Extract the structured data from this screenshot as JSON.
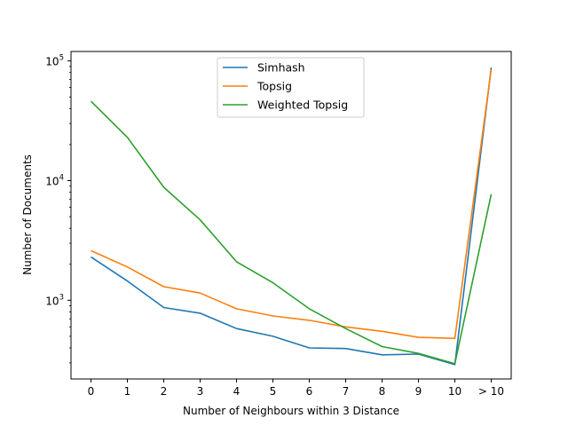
{
  "chart_data": {
    "type": "line",
    "title": "",
    "xlabel": "Number of Neighbours within 3 Distance",
    "ylabel": "Number of Documents",
    "categories": [
      "0",
      "1",
      "2",
      "3",
      "4",
      "5",
      "6",
      "7",
      "8",
      "9",
      "10",
      "> 10"
    ],
    "y_scale": "log",
    "ylim": [
      220,
      120000
    ],
    "y_ticks": [
      {
        "value": 1000,
        "base": "10",
        "exp": "3"
      },
      {
        "value": 10000,
        "base": "10",
        "exp": "4"
      },
      {
        "value": 100000,
        "base": "10",
        "exp": "5"
      }
    ],
    "legend_position": "upper-center",
    "grid": false,
    "series": [
      {
        "name": "Simhash",
        "color": "#1f77b4",
        "values": [
          2300,
          1450,
          870,
          780,
          580,
          500,
          400,
          395,
          350,
          355,
          290,
          88000
        ]
      },
      {
        "name": "Topsig",
        "color": "#ff7f0e",
        "values": [
          2600,
          1900,
          1300,
          1150,
          850,
          740,
          680,
          600,
          550,
          490,
          480,
          85000
        ]
      },
      {
        "name": "Weighted Topsig",
        "color": "#2ca02c",
        "values": [
          46000,
          23000,
          8800,
          4700,
          2100,
          1400,
          850,
          580,
          410,
          360,
          295,
          7700
        ]
      }
    ]
  }
}
